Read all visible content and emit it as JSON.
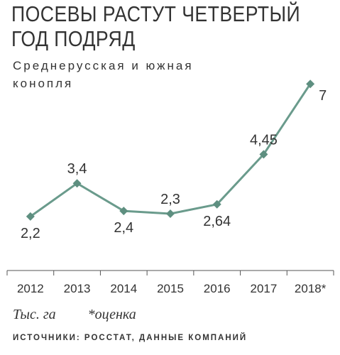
{
  "title_lines": [
    "ПОСЕВЫ РАСТУТ ЧЕТВЕРТЫЙ",
    "ГОД ПОДРЯД"
  ],
  "subtitle_lines": [
    "Среднерусская и южная",
    "конопля"
  ],
  "unit": "Тыс. га",
  "note": "*оценка",
  "source": "ИСТОЧНИКИ: РОССТАТ, ДАННЫЕ КОМПАНИЙ",
  "colors": {
    "line": "#6a9b8c",
    "marker": "#5e8f80",
    "axis": "#555555",
    "text": "#333333"
  },
  "chart_data": {
    "type": "line",
    "title": "ПОСЕВЫ РАСТУТ ЧЕТВЕРТЫЙ ГОД ПОДРЯД",
    "categories": [
      "2012",
      "2013",
      "2014",
      "2015",
      "2016",
      "2017",
      "2018*"
    ],
    "values": [
      2.2,
      3.4,
      2.4,
      2.3,
      2.64,
      4.45,
      7
    ],
    "labels": [
      "2,2",
      "3,4",
      "2,4",
      "2,3",
      "2,64",
      "4,45",
      "7"
    ],
    "label_position": [
      "below",
      "above",
      "below",
      "above",
      "below",
      "above",
      "right"
    ],
    "ylim": [
      0,
      7.6
    ],
    "xlabel": "",
    "ylabel": "Тыс. га",
    "grid": false,
    "marker": "diamond"
  }
}
